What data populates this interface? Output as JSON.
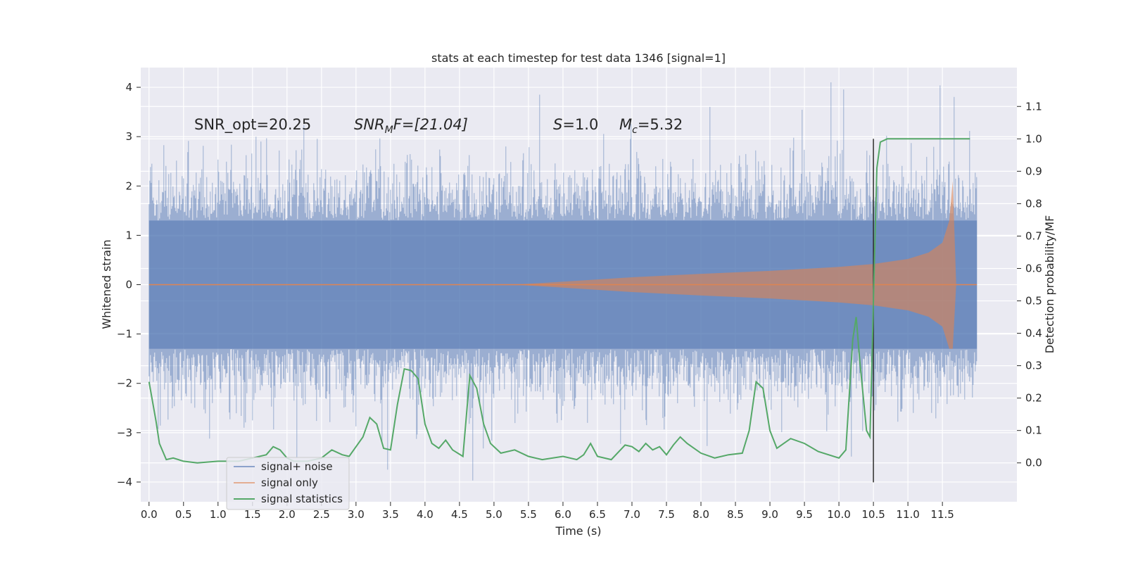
{
  "chart_data": {
    "type": "line",
    "title": "stats at each timestep for test data 1346 [signal=1]",
    "xlabel": "Time (s)",
    "ylabel": "Whitened strain",
    "y2label": "Detection probability/MF",
    "xlim": [
      -0.12,
      12.58
    ],
    "ylim": [
      -4.4,
      4.4
    ],
    "y2lim": [
      -0.12,
      1.22
    ],
    "x_ticks": [
      "0.0",
      "0.5",
      "1.0",
      "1.5",
      "2.0",
      "2.5",
      "3.0",
      "3.5",
      "4.0",
      "4.5",
      "5.0",
      "5.5",
      "6.0",
      "6.5",
      "7.0",
      "7.5",
      "8.0",
      "8.5",
      "9.0",
      "9.5",
      "10.0",
      "10.5",
      "11.0",
      "11.5"
    ],
    "y_ticks": [
      "−4",
      "−3",
      "−2",
      "−1",
      "0",
      "1",
      "2",
      "3",
      "4"
    ],
    "y2_ticks": [
      "0.0",
      "0.1",
      "0.2",
      "0.3",
      "0.4",
      "0.5",
      "0.6",
      "0.7",
      "0.8",
      "0.9",
      "1.0",
      "1.1"
    ],
    "grid": true,
    "background": "#eaeaf2",
    "annotations": {
      "snr_opt": "SNR_opt=20.25",
      "snr_mf_prefix": "SNR",
      "snr_mf_sub": "M",
      "snr_mf_rest": "F=[21.04]",
      "s_symbol": "S",
      "s_value": "=1.0",
      "mc_symbol": "M",
      "mc_sub": "c",
      "mc_value": "=5.32"
    },
    "legend_position": "lower-left",
    "series": [
      {
        "name": "signal+ noise",
        "color": "#4c72b0",
        "kind": "noise",
        "band_ylim": [
          -1.3,
          1.3
        ],
        "x_range": [
          0.0,
          12.0
        ]
      },
      {
        "name": "signal only",
        "color": "#dd8452",
        "kind": "chirp",
        "x": [
          5.3,
          6.0,
          7.0,
          8.0,
          9.0,
          10.0,
          10.5,
          11.0,
          11.3,
          11.5,
          11.6,
          11.65,
          11.7
        ],
        "amplitude": [
          0.0,
          0.06,
          0.15,
          0.22,
          0.28,
          0.36,
          0.42,
          0.52,
          0.65,
          0.85,
          1.3,
          2.1,
          0.0
        ]
      },
      {
        "name": "signal statistics",
        "color": "#55a868",
        "kind": "line",
        "x": [
          0.0,
          0.1,
          0.15,
          0.25,
          0.35,
          0.5,
          0.7,
          1.0,
          1.3,
          1.5,
          1.7,
          1.8,
          1.9,
          2.0,
          2.1,
          2.3,
          2.5,
          2.65,
          2.8,
          2.9,
          3.1,
          3.2,
          3.3,
          3.4,
          3.5,
          3.6,
          3.7,
          3.8,
          3.9,
          4.0,
          4.1,
          4.2,
          4.3,
          4.4,
          4.55,
          4.65,
          4.75,
          4.85,
          4.95,
          5.1,
          5.3,
          5.5,
          5.7,
          6.0,
          6.2,
          6.3,
          6.4,
          6.5,
          6.7,
          6.9,
          7.0,
          7.1,
          7.2,
          7.3,
          7.4,
          7.5,
          7.6,
          7.7,
          7.8,
          8.0,
          8.2,
          8.4,
          8.6,
          8.7,
          8.8,
          8.9,
          9.0,
          9.1,
          9.2,
          9.3,
          9.5,
          9.7,
          10.0,
          10.1,
          10.2,
          10.25,
          10.3,
          10.4,
          10.45,
          10.5,
          10.55,
          10.6,
          10.7,
          10.8,
          11.0,
          11.3,
          11.6,
          11.7,
          11.8,
          11.9
        ],
        "y": [
          0.25,
          0.13,
          0.06,
          0.01,
          0.015,
          0.005,
          0.0,
          0.005,
          0.005,
          0.015,
          0.025,
          0.05,
          0.04,
          0.015,
          0.005,
          0.005,
          0.015,
          0.04,
          0.025,
          0.02,
          0.08,
          0.14,
          0.12,
          0.045,
          0.04,
          0.18,
          0.29,
          0.285,
          0.26,
          0.12,
          0.06,
          0.045,
          0.07,
          0.04,
          0.02,
          0.27,
          0.23,
          0.12,
          0.06,
          0.03,
          0.04,
          0.02,
          0.01,
          0.02,
          0.01,
          0.025,
          0.06,
          0.02,
          0.01,
          0.055,
          0.05,
          0.035,
          0.06,
          0.04,
          0.05,
          0.025,
          0.055,
          0.08,
          0.06,
          0.03,
          0.015,
          0.025,
          0.03,
          0.1,
          0.25,
          0.23,
          0.1,
          0.045,
          0.06,
          0.075,
          0.06,
          0.035,
          0.015,
          0.04,
          0.38,
          0.45,
          0.32,
          0.1,
          0.08,
          0.5,
          0.91,
          0.99,
          1.0,
          1.0,
          1.0,
          1.0,
          1.0,
          1.0,
          1.0,
          1.0
        ]
      }
    ],
    "vline": {
      "x": 10.5,
      "y2_range": [
        -0.06,
        1.0
      ],
      "color": "#2d2d2d"
    }
  }
}
